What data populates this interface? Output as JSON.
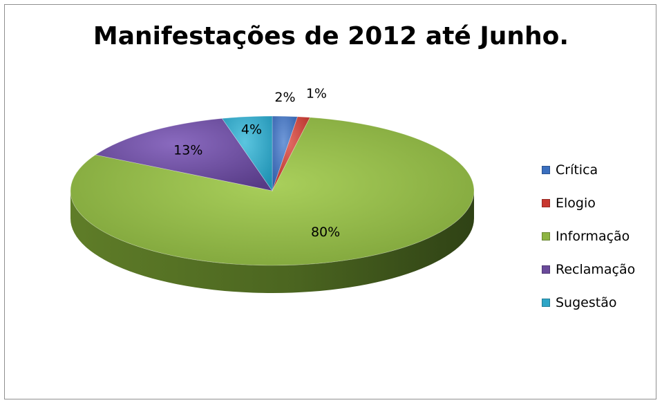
{
  "chart_data": {
    "type": "pie",
    "title": "Manifestações de 2012 até Junho.",
    "categories": [
      "Crítica",
      "Elogio",
      "Informação",
      "Reclamação",
      "Sugestão"
    ],
    "values": [
      2,
      1,
      80,
      13,
      4
    ],
    "data_labels": [
      "2%",
      "1%",
      "80%",
      "13%",
      "4%"
    ],
    "colors": [
      "#3a6fbf",
      "#c8372f",
      "#8db442",
      "#6a4a9a",
      "#2ea6c7"
    ],
    "legend_position": "right",
    "style": "3d"
  }
}
